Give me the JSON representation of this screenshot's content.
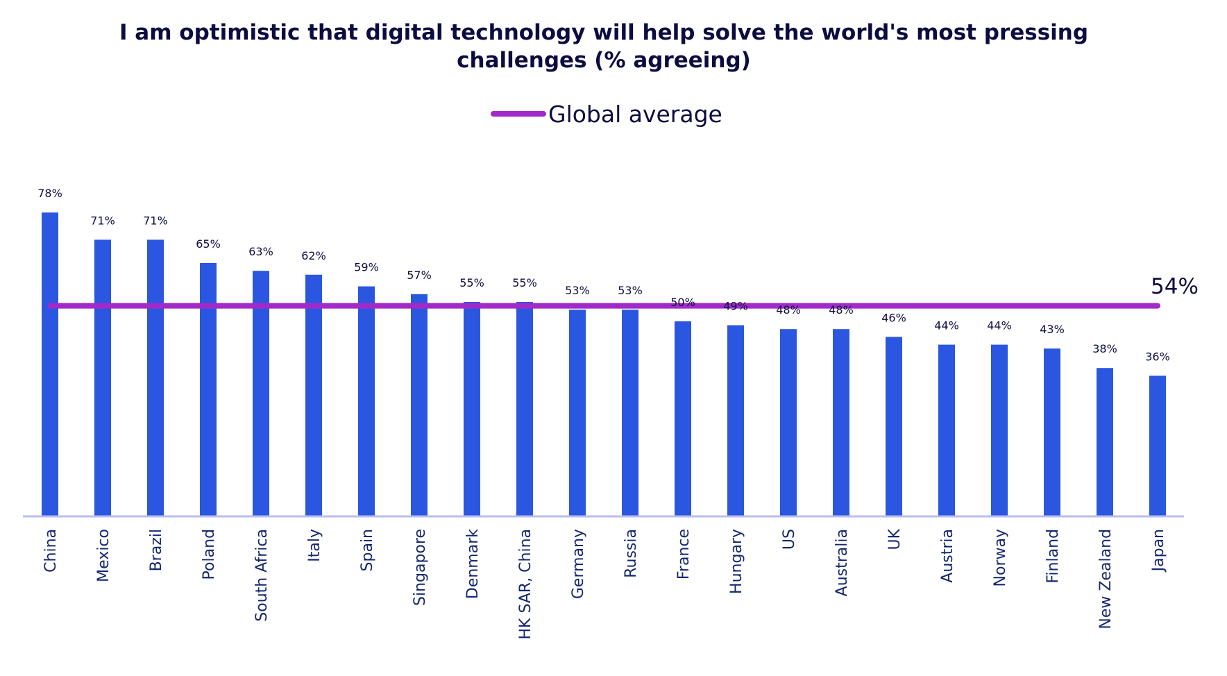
{
  "chart_data": {
    "type": "bar",
    "title": "I am optimistic that digital technology will help solve the world's most pressing challenges (% agreeing)",
    "title_lines": [
      "I am optimistic that digital technology will help solve the world's most pressing",
      "challenges (% agreeing)"
    ],
    "xlabel": "",
    "ylabel": "",
    "ylim": [
      0,
      100
    ],
    "grid": false,
    "legend": {
      "placement": "top-center",
      "entries": [
        {
          "name": "Global average",
          "type": "line",
          "color": "#a12bc8"
        }
      ]
    },
    "categories": [
      "China",
      "Mexico",
      "Brazil",
      "Poland",
      "South Africa",
      "Italy",
      "Spain",
      "Singapore",
      "Denmark",
      "HK SAR, China",
      "Germany",
      "Russia",
      "France",
      "Hungary",
      "US",
      "Australia",
      "UK",
      "Austria",
      "Norway",
      "Finland",
      "New Zealand",
      "Japan"
    ],
    "series": [
      {
        "name": "% agreeing",
        "color": "#2a56e0",
        "values": [
          78,
          71,
          71,
          65,
          63,
          62,
          59,
          57,
          55,
          55,
          53,
          53,
          50,
          49,
          48,
          48,
          46,
          44,
          44,
          43,
          38,
          36
        ],
        "data_labels": [
          "78%",
          "71%",
          "71%",
          "65%",
          "63%",
          "62%",
          "59%",
          "57%",
          "55%",
          "55%",
          "53%",
          "53%",
          "50%",
          "49%",
          "48%",
          "48%",
          "46%",
          "44%",
          "44%",
          "43%",
          "38%",
          "36%"
        ]
      }
    ],
    "reference_lines": [
      {
        "name": "Global average",
        "value": 54,
        "label": "54%",
        "color": "#a12bc8"
      }
    ],
    "colors": {
      "bar": "#2a56e0",
      "average_line": "#a12bc8",
      "axis": "#b9bcf5",
      "text": "#0c0c40",
      "category_text": "#14286e"
    }
  }
}
